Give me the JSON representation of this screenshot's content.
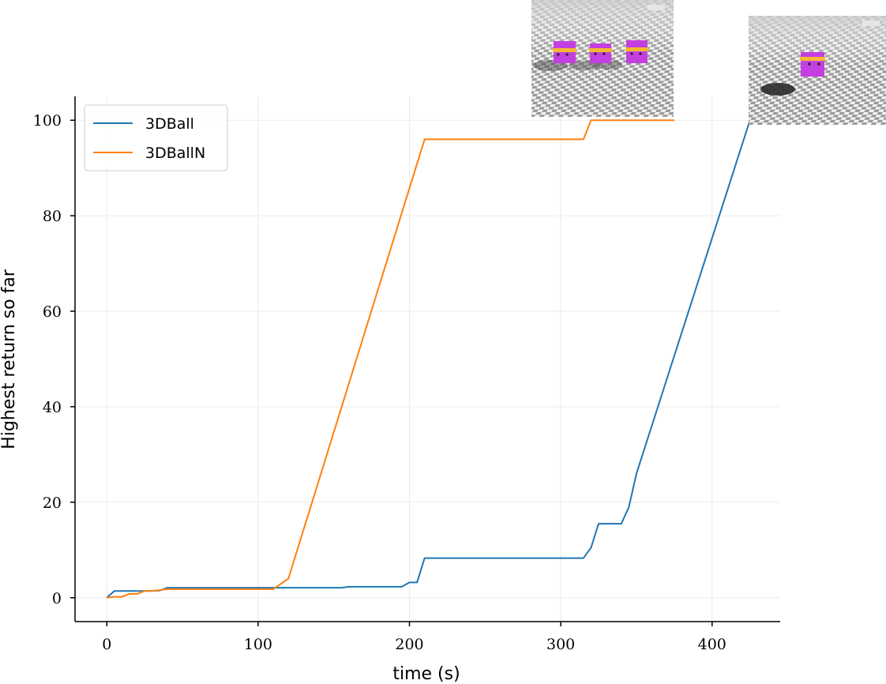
{
  "chart_data": {
    "type": "line",
    "title": "",
    "xlabel": "time (s)",
    "ylabel": "Highest return so far",
    "xlim": [
      -21,
      445
    ],
    "ylim": [
      -5,
      105
    ],
    "xticks": [
      0,
      100,
      200,
      300,
      400
    ],
    "yticks": [
      0,
      20,
      40,
      60,
      80,
      100
    ],
    "xtick_labels": [
      "0",
      "100",
      "200",
      "300",
      "400"
    ],
    "ytick_labels": [
      "0",
      "20",
      "40",
      "60",
      "80",
      "100"
    ],
    "grid": true,
    "legend_position": "top-left",
    "series": [
      {
        "name": "3DBall",
        "color": "#1f77b4",
        "x": [
          0,
          5,
          10,
          25,
          35,
          40,
          100,
          155,
          160,
          195,
          200,
          205,
          210,
          300,
          315,
          320,
          325,
          330,
          340,
          345,
          350,
          425
        ],
        "y": [
          0,
          1.4,
          1.4,
          1.4,
          1.5,
          2.1,
          2.1,
          2.1,
          2.3,
          2.3,
          3.2,
          3.2,
          8.3,
          8.3,
          8.3,
          10.5,
          15.5,
          15.5,
          15.5,
          19,
          26,
          100
        ]
      },
      {
        "name": "3DBallN",
        "color": "#ff7f0e",
        "x": [
          0,
          5,
          10,
          15,
          20,
          25,
          30,
          35,
          40,
          100,
          110,
          120,
          210,
          300,
          315,
          320,
          375
        ],
        "y": [
          0,
          0.2,
          0.2,
          0.8,
          0.8,
          1.4,
          1.4,
          1.6,
          1.8,
          1.8,
          1.8,
          4,
          96,
          96,
          96,
          100,
          100
        ]
      }
    ]
  },
  "insets": [
    {
      "name": "multi-agent-scene-thumbnail",
      "agents": 3
    },
    {
      "name": "single-agent-scene-thumbnail",
      "agents": 1
    }
  ]
}
